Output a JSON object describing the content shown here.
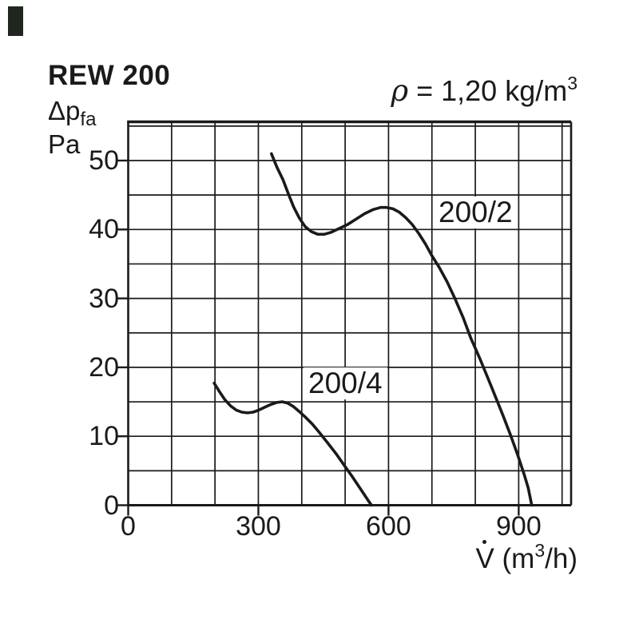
{
  "page": {
    "title": "REW 200",
    "pressure_axis": {
      "symbol": "Δp",
      "subscript": "fa",
      "unit": "Pa"
    },
    "density_note": {
      "symbol": "ρ",
      "equation": " = 1,20 kg/m",
      "exponent": "3"
    },
    "flow_axis": {
      "symbol": "V",
      "dot_above": "˙",
      "open": " (m",
      "exponent": "3",
      "close": "/h)"
    }
  },
  "colors": {
    "ink": "#1a1a1a",
    "background": "#ffffff",
    "corner_mark": "#1f261e"
  },
  "chart_data": {
    "type": "line",
    "title": "REW 200",
    "annotation": "ρ = 1,20 kg/m³",
    "xlabel": "V̇ (m³/h)",
    "ylabel": "Δpfa Pa",
    "grid": true,
    "legend_position": "inline-labels",
    "x_axis": {
      "min": 0,
      "max": 1020,
      "gridline_step": 100,
      "tick_values": [
        0,
        300,
        600,
        900
      ],
      "tick_labels": [
        "0",
        "300",
        "600",
        "900"
      ]
    },
    "y_axis": {
      "min": 0,
      "max": 56,
      "gridline_step": 5,
      "tick_values": [
        0,
        10,
        20,
        30,
        40,
        50
      ],
      "tick_labels": [
        "0",
        "10",
        "20",
        "30",
        "40",
        "50"
      ]
    },
    "series": [
      {
        "name": "200/2",
        "points": [
          [
            330,
            51.0
          ],
          [
            343,
            49.0
          ],
          [
            357,
            47.2
          ],
          [
            369,
            45.2
          ],
          [
            381,
            43.3
          ],
          [
            394,
            41.7
          ],
          [
            408,
            40.4
          ],
          [
            422,
            39.7
          ],
          [
            437,
            39.3
          ],
          [
            452,
            39.3
          ],
          [
            468,
            39.6
          ],
          [
            485,
            40.1
          ],
          [
            505,
            40.7
          ],
          [
            525,
            41.5
          ],
          [
            545,
            42.3
          ],
          [
            565,
            42.9
          ],
          [
            582,
            43.2
          ],
          [
            595,
            43.2
          ],
          [
            610,
            43.0
          ],
          [
            625,
            42.5
          ],
          [
            640,
            41.7
          ],
          [
            655,
            40.7
          ],
          [
            670,
            39.4
          ],
          [
            685,
            37.9
          ],
          [
            700,
            36.2
          ],
          [
            716,
            34.6
          ],
          [
            735,
            32.4
          ],
          [
            753,
            30.0
          ],
          [
            772,
            27.2
          ],
          [
            790,
            24.2
          ],
          [
            811,
            21.2
          ],
          [
            832,
            18.0
          ],
          [
            848,
            15.5
          ],
          [
            864,
            13.0
          ],
          [
            881,
            10.2
          ],
          [
            897,
            7.4
          ],
          [
            913,
            4.4
          ],
          [
            922,
            2.5
          ],
          [
            930,
            0.0
          ]
        ]
      },
      {
        "name": "200/4",
        "points": [
          [
            198,
            17.7
          ],
          [
            210,
            16.5
          ],
          [
            223,
            15.3
          ],
          [
            236,
            14.4
          ],
          [
            249,
            13.8
          ],
          [
            262,
            13.5
          ],
          [
            275,
            13.4
          ],
          [
            288,
            13.5
          ],
          [
            301,
            13.8
          ],
          [
            314,
            14.2
          ],
          [
            328,
            14.6
          ],
          [
            342,
            14.9
          ],
          [
            355,
            15.0
          ],
          [
            368,
            14.8
          ],
          [
            381,
            14.3
          ],
          [
            394,
            13.6
          ],
          [
            408,
            12.8
          ],
          [
            424,
            11.8
          ],
          [
            440,
            10.6
          ],
          [
            460,
            9.0
          ],
          [
            480,
            7.4
          ],
          [
            500,
            5.6
          ],
          [
            517,
            4.1
          ],
          [
            535,
            2.4
          ],
          [
            554,
            0.6
          ],
          [
            561,
            0.0
          ]
        ]
      }
    ]
  }
}
